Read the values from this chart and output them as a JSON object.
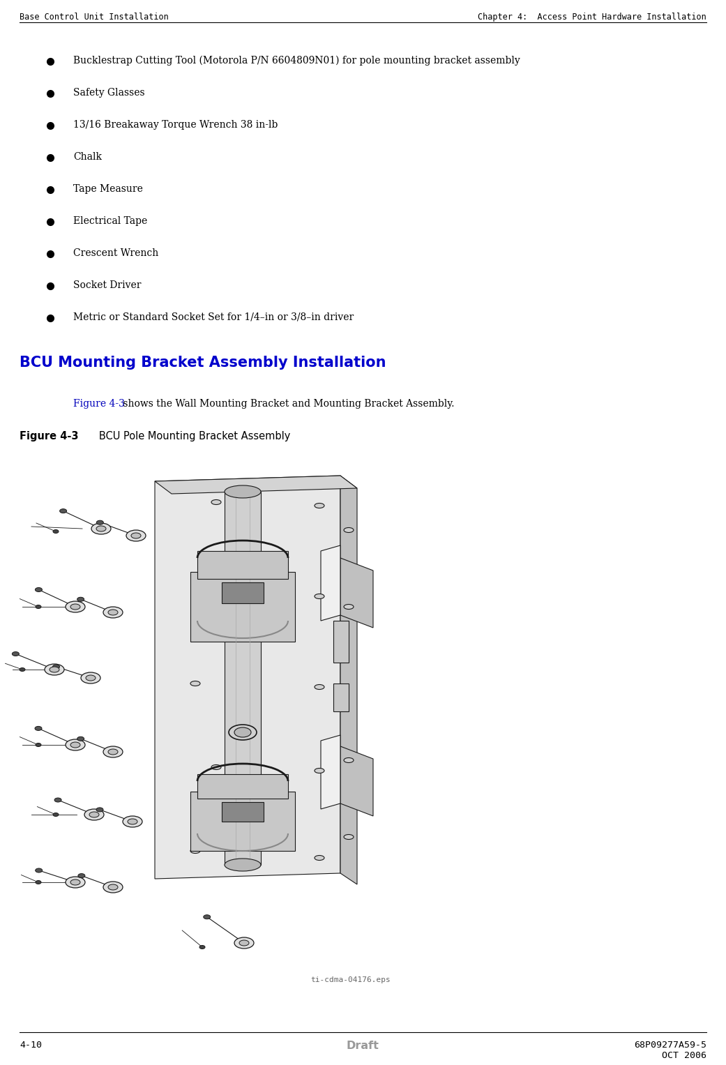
{
  "header_left": "Base Control Unit Installation",
  "header_right": "Chapter 4:  Access Point Hardware Installation",
  "footer_left": "4-10",
  "footer_center": "Draft",
  "footer_right_line1": "68P09277A59-5",
  "footer_right_line2": "OCT 2006",
  "bullet_items": [
    "Bucklestrap Cutting Tool (Motorola P/N 6604809N01) for pole mounting bracket assembly",
    "Safety Glasses",
    "13/16 Breakaway Torque Wrench 38 in-lb",
    "Chalk",
    "Tape Measure",
    "Electrical Tape",
    "Crescent Wrench",
    "Socket Driver",
    "Metric or Standard Socket Set for 1/4–in or 3/8–in driver"
  ],
  "section_heading": "BCU Mounting Bracket Assembly Installation",
  "figure_ref_text": "Figure 4-3",
  "figure_ref_rest": " shows the Wall Mounting Bracket and Mounting Bracket Assembly.",
  "figure_caption_bold": "Figure 4-3",
  "figure_caption_rest": "   BCU Pole Mounting Bracket Assembly",
  "figure_filename_label": "ti-cdma-04176.eps",
  "bg_color": "#ffffff",
  "header_color": "#000000",
  "header_font_size": 8.5,
  "bullet_font_size": 10.0,
  "section_heading_color": "#0000cc",
  "section_heading_font_size": 15,
  "figure_ref_color": "#0000bb",
  "footer_color": "#000000",
  "footer_draft_color": "#999999",
  "footer_font_size": 9.5,
  "body_font_size": 10.0,
  "line_color": "#000000"
}
